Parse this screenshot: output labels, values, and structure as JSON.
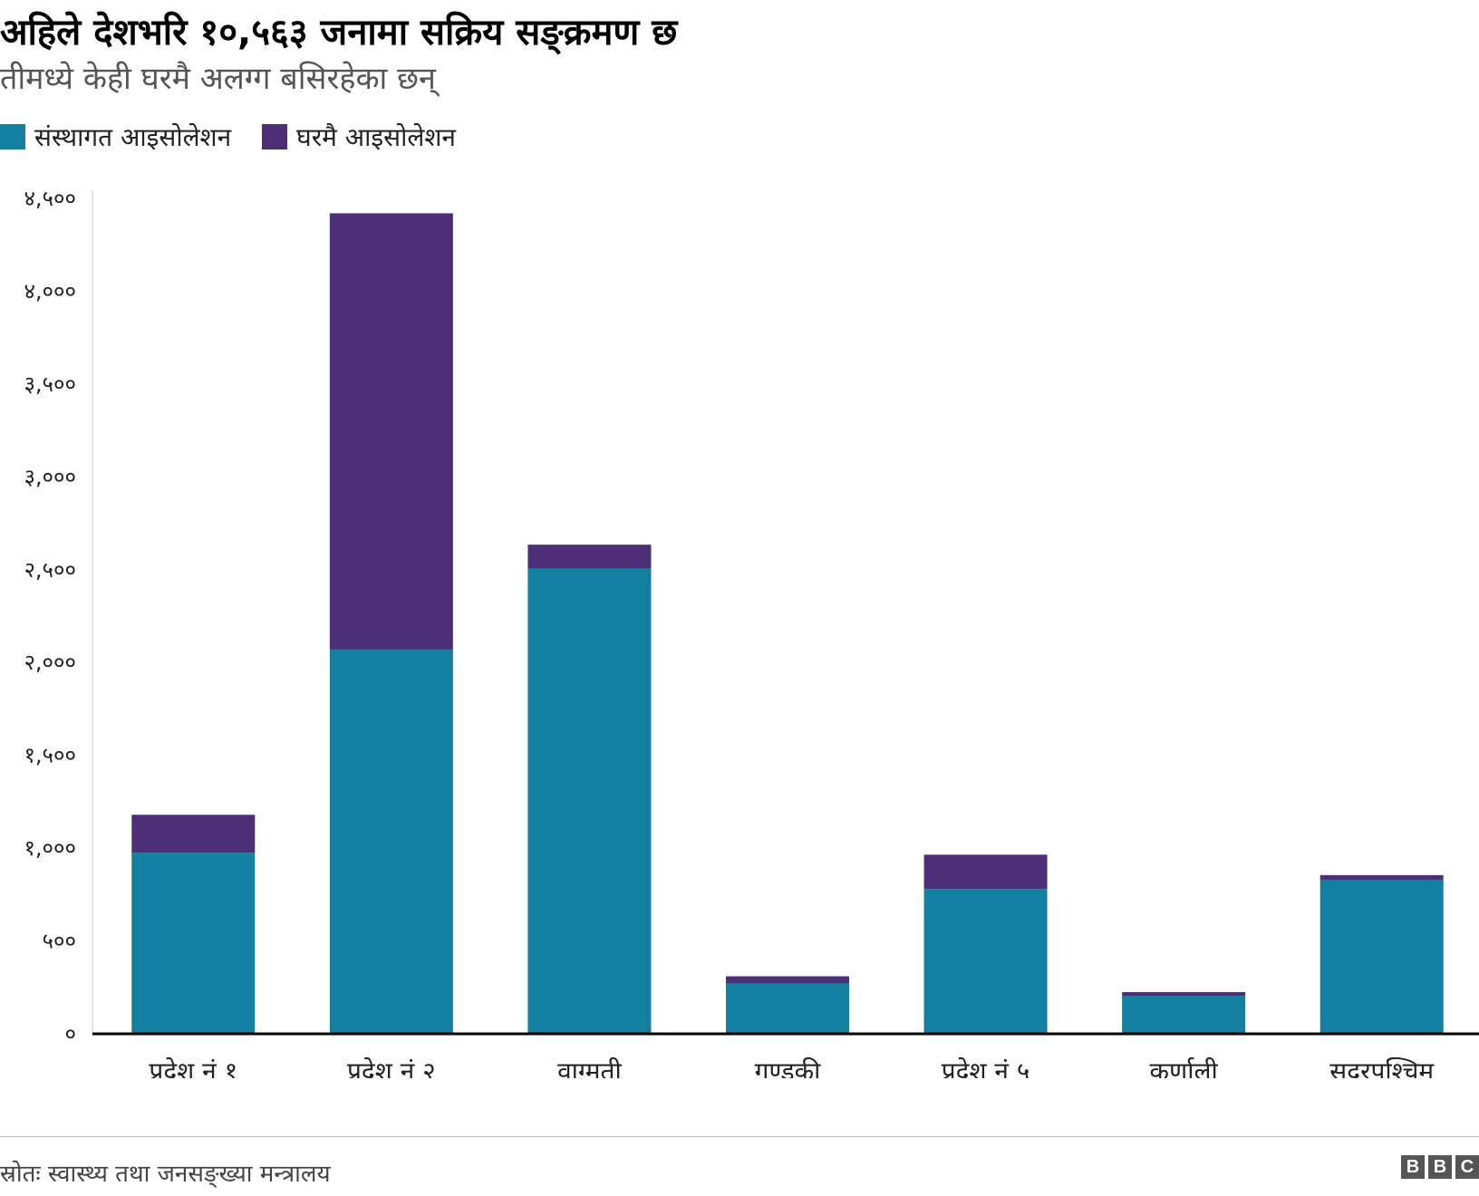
{
  "title": "अहिले देशभरि १०,५६३ जनामा सक्रिय सङ्क्रमण छ",
  "subtitle": "तीमध्ये केही घरमै अलग्ग बसिरहेका छन्",
  "colors": {
    "institutional": "#1380a1",
    "home": "#4d2f77",
    "axis": "#000000",
    "text": "#222222"
  },
  "chart_data": {
    "type": "bar",
    "stacked": true,
    "title": "अहिले देशभरि १०,५६३ जनामा सक्रिय सङ्क्रमण छ",
    "subtitle": "तीमध्ये केही घरमै अलग्ग बसिरहेका छन्",
    "xlabel": "",
    "ylabel": "",
    "ylim": [
      0,
      4500
    ],
    "grid": false,
    "legend_position": "top-left",
    "yticks": [
      0,
      500,
      1000,
      1500,
      2000,
      2500,
      3000,
      3500,
      4000,
      4500
    ],
    "ytick_labels": [
      "०",
      "५००",
      "१,०००",
      "१,५००",
      "२,०००",
      "२,५००",
      "३,०००",
      "३,५००",
      "४,०००",
      "४,५००"
    ],
    "categories": [
      "प्रदेश नं १",
      "प्रदेश नं २",
      "वाग्मती",
      "गण्डकी",
      "प्रदेश नं ५",
      "कर्णाली",
      "सुदूरपश्चिम"
    ],
    "series": [
      {
        "name": "संस्थागत आइसोलेशन",
        "color": "#1380a1",
        "values": [
          970,
          2065,
          2500,
          265,
          775,
          200,
          825
        ]
      },
      {
        "name": "घरमै आइसोलेशन",
        "color": "#4d2f77",
        "values": [
          205,
          2350,
          130,
          40,
          185,
          20,
          25
        ]
      }
    ]
  },
  "footer": {
    "source": "स्रोतः स्वास्थ्य तथा जनसङ्ख्या मन्त्रालय",
    "logo_letters": [
      "B",
      "B",
      "C"
    ]
  }
}
